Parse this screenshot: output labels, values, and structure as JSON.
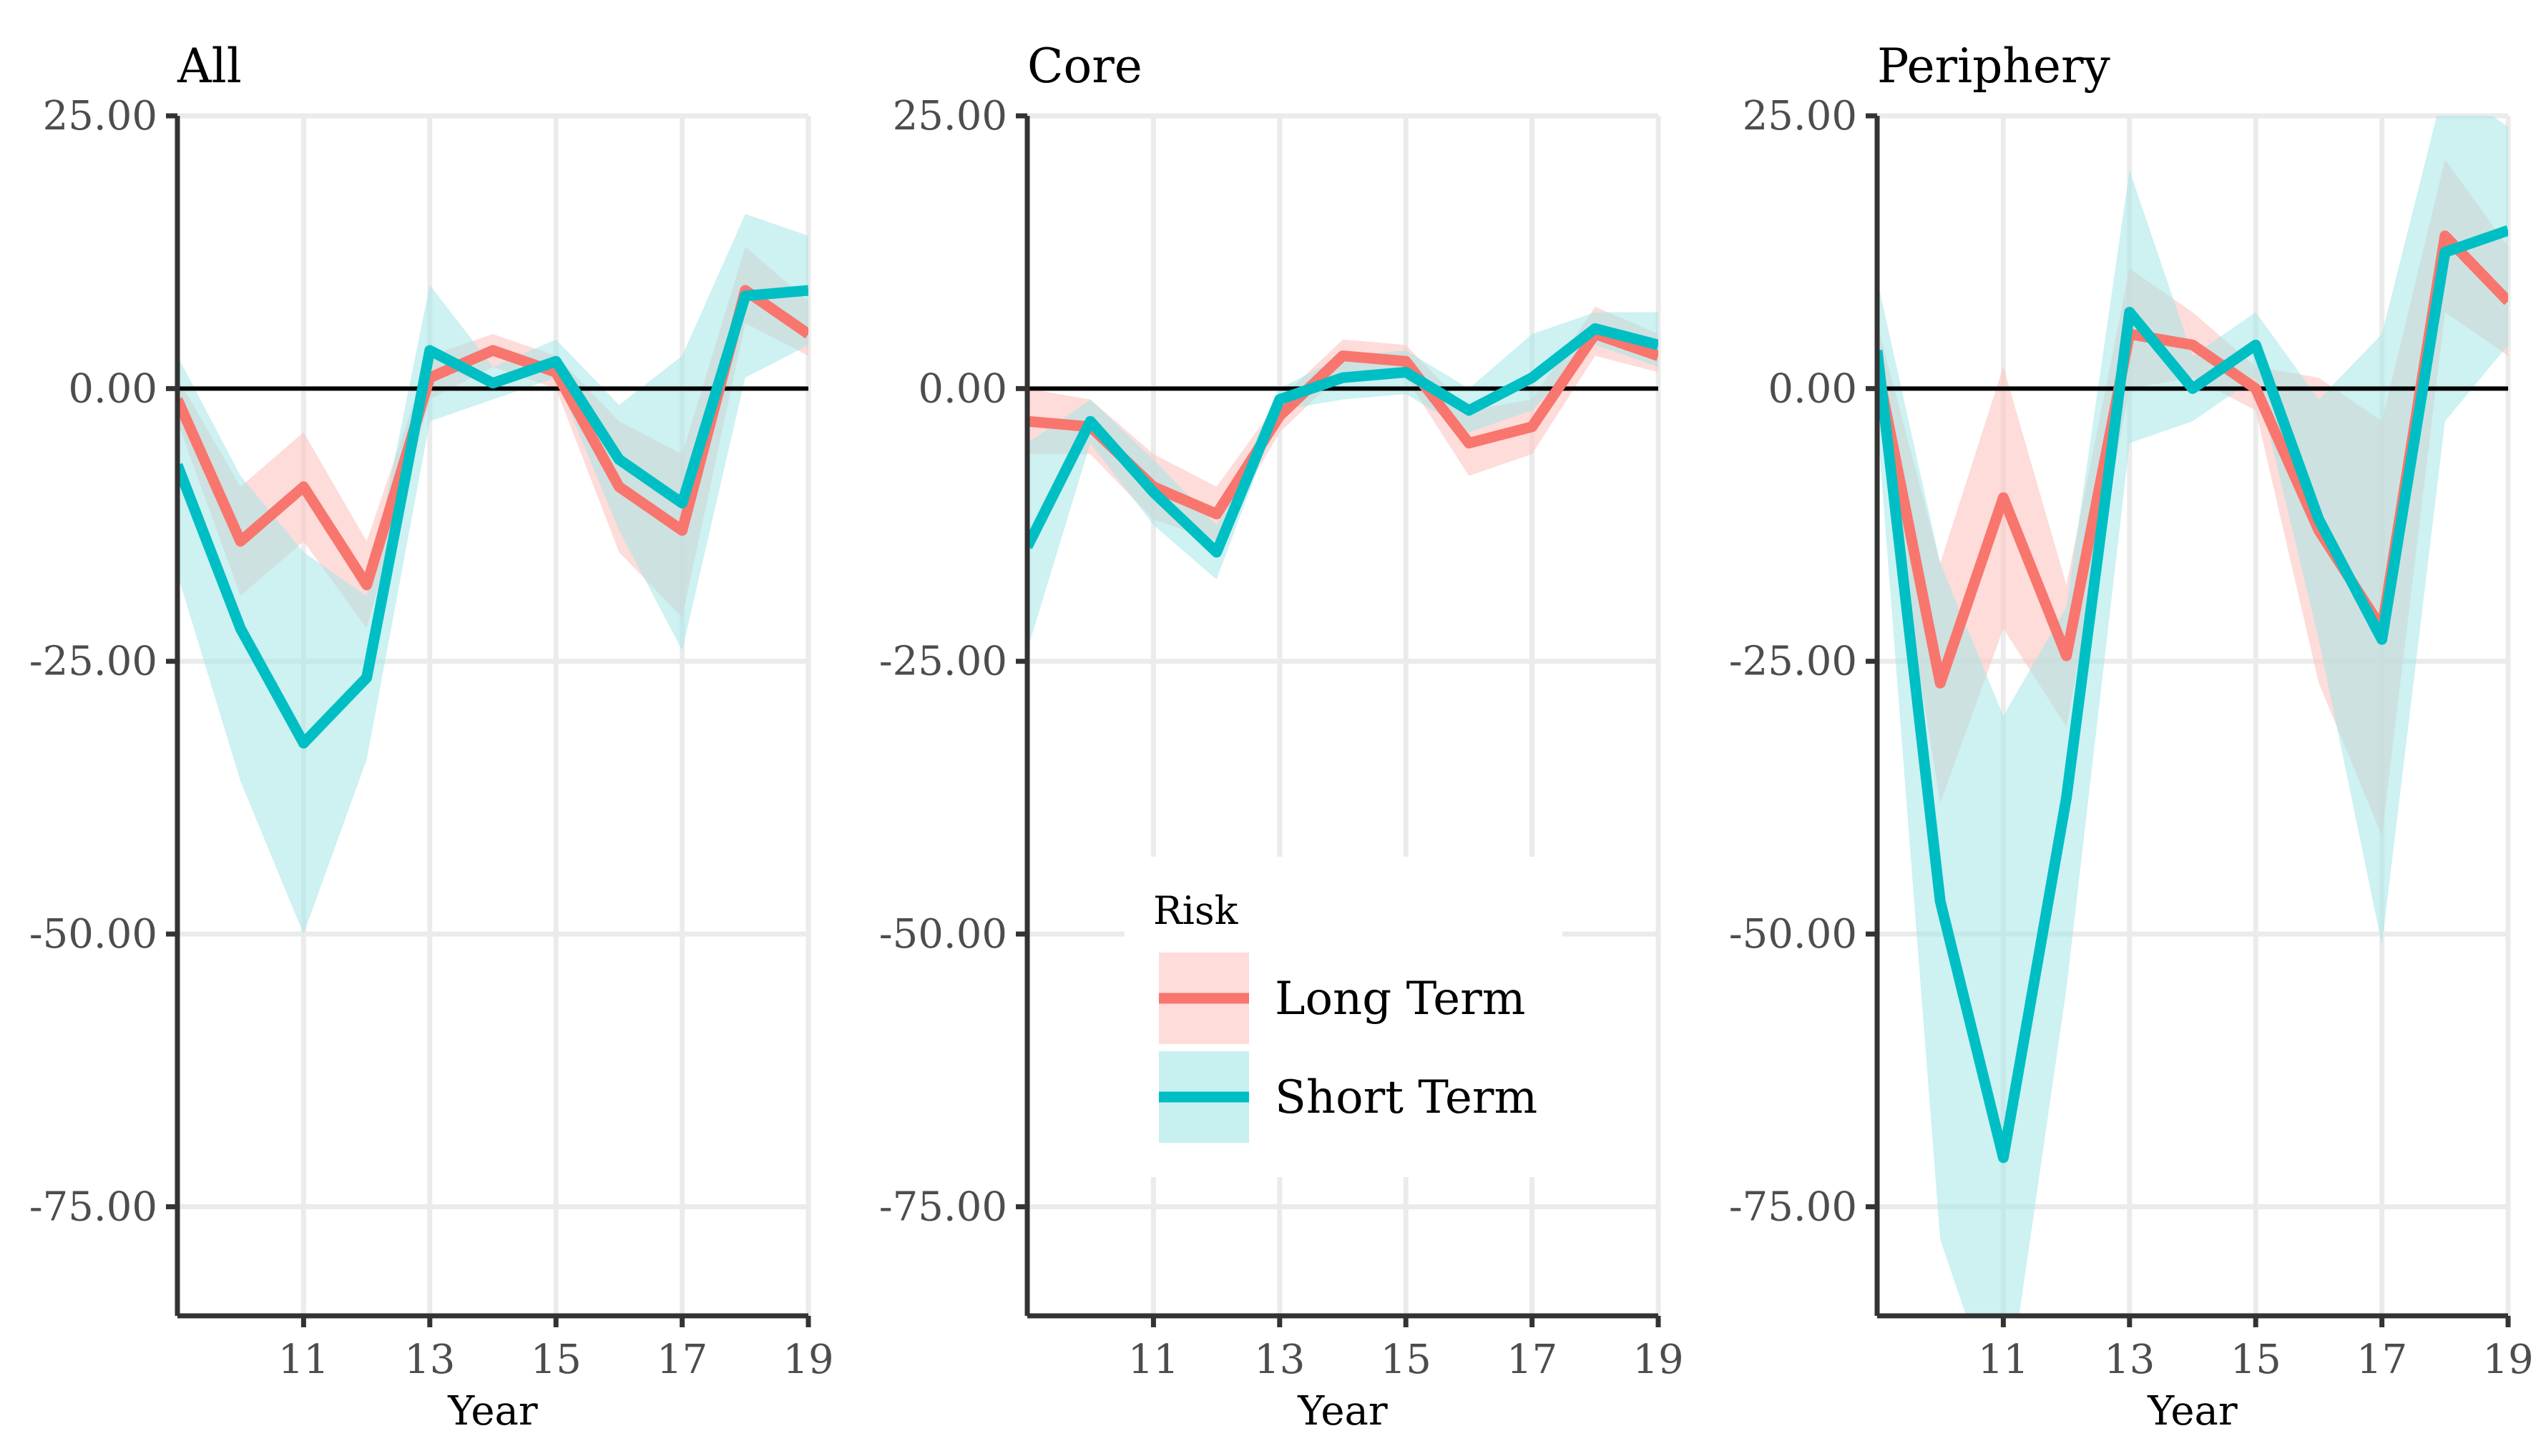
{
  "chart_data": [
    {
      "type": "line",
      "title": "All",
      "xlabel": "Year",
      "ylabel": "",
      "xlim": [
        9,
        19
      ],
      "ylim": [
        -85,
        25
      ],
      "xticks": [
        11,
        13,
        15,
        17,
        19
      ],
      "yticks": [
        25,
        0,
        -25,
        -50,
        -75
      ],
      "ytick_labels": [
        "25.00",
        "0.00",
        "-25.00",
        "-50.00",
        "-75.00"
      ],
      "reference_line": 0,
      "x": [
        9,
        10,
        11,
        12,
        13,
        14,
        15,
        16,
        17,
        18,
        19
      ],
      "series": [
        {
          "name": "Long Term",
          "values": [
            -1,
            -14,
            -9,
            -18,
            1,
            3.5,
            1.5,
            -9,
            -13,
            9,
            5
          ],
          "lower": [
            -3,
            -19,
            -14,
            -22,
            -1,
            2,
            0,
            -15,
            -21,
            6,
            3
          ],
          "upper": [
            1,
            -9,
            -4,
            -14,
            3,
            5,
            3,
            -3,
            -6,
            13,
            8
          ]
        },
        {
          "name": "Short Term",
          "values": [
            -7,
            -22,
            -32.5,
            -26.5,
            3.5,
            0.5,
            2.5,
            -6.5,
            -10.5,
            8.5,
            9
          ],
          "lower": [
            -17,
            -36,
            -50,
            -34,
            -3,
            -1,
            1,
            -13,
            -24,
            1,
            4
          ],
          "upper": [
            3,
            -8,
            -15,
            -19,
            9.5,
            2,
            4.5,
            -1.5,
            3,
            16,
            14
          ]
        }
      ]
    },
    {
      "type": "line",
      "title": "Core",
      "xlabel": "Year",
      "ylabel": "",
      "xlim": [
        9,
        19
      ],
      "ylim": [
        -85,
        25
      ],
      "xticks": [
        11,
        13,
        15,
        17,
        19
      ],
      "yticks": [
        25,
        0,
        -25,
        -50,
        -75
      ],
      "ytick_labels": [
        "25.00",
        "0.00",
        "-25.00",
        "-50.00",
        "-75.00"
      ],
      "reference_line": 0,
      "x": [
        9,
        10,
        11,
        12,
        13,
        14,
        15,
        16,
        17,
        18,
        19
      ],
      "series": [
        {
          "name": "Long Term",
          "values": [
            -3,
            -3.5,
            -9,
            -11.5,
            -2.5,
            3,
            2.5,
            -5,
            -3.5,
            5,
            3
          ],
          "lower": [
            -6,
            -6,
            -12,
            -14,
            -4,
            1.5,
            1,
            -8,
            -6,
            3,
            1.5
          ],
          "upper": [
            0,
            -1,
            -6,
            -9,
            -1,
            4.5,
            4,
            -2,
            -1,
            7.5,
            5
          ]
        },
        {
          "name": "Short Term",
          "values": [
            -14.5,
            -3,
            -9.5,
            -15,
            -1,
            1,
            1.5,
            -2,
            1,
            5.5,
            4
          ],
          "lower": [
            -24,
            -5,
            -12.5,
            -17.5,
            -2,
            -1,
            -0.5,
            -4,
            -2,
            4,
            2
          ],
          "upper": [
            -5,
            -1,
            -6.5,
            -12.5,
            0,
            3,
            3.5,
            0,
            5,
            7,
            7
          ]
        }
      ]
    },
    {
      "type": "line",
      "title": "Periphery",
      "xlabel": "Year",
      "ylabel": "",
      "xlim": [
        9,
        19
      ],
      "ylim": [
        -85,
        25
      ],
      "xticks": [
        11,
        13,
        15,
        17,
        19
      ],
      "yticks": [
        25,
        0,
        -25,
        -50,
        -75
      ],
      "ytick_labels": [
        "25.00",
        "0.00",
        "-25.00",
        "-50.00",
        "-75.00"
      ],
      "reference_line": 0,
      "x": [
        9,
        10,
        11,
        12,
        13,
        14,
        15,
        16,
        17,
        18,
        19
      ],
      "series": [
        {
          "name": "Long Term",
          "values": [
            2,
            -27,
            -10,
            -24.5,
            5,
            4,
            0,
            -13,
            -22,
            14,
            8
          ],
          "lower": [
            -2,
            -38,
            -22,
            -31,
            0,
            1,
            -2,
            -27,
            -41,
            7,
            3
          ],
          "upper": [
            6,
            -16,
            2,
            -18,
            11,
            7,
            2,
            1,
            -3,
            21,
            13
          ]
        },
        {
          "name": "Short Term",
          "values": [
            3.5,
            -47,
            -70.5,
            -37.5,
            7,
            0,
            4,
            -12,
            -23,
            12.5,
            14.5
          ],
          "lower": [
            -3,
            -78,
            -95,
            -55,
            -5,
            -3,
            1,
            -23,
            -51,
            -3,
            4
          ],
          "upper": [
            10,
            -16,
            -30,
            -20,
            20,
            3,
            7,
            -1,
            5,
            28,
            24
          ]
        }
      ]
    }
  ],
  "legend": {
    "title": "Risk",
    "items": [
      {
        "label": "Long Term",
        "color": "#F8766D"
      },
      {
        "label": "Short Term",
        "color": "#00BFC4"
      }
    ]
  },
  "colors": {
    "long_term": "#F8766D",
    "short_term": "#00BFC4",
    "long_band": "#FBC5C2",
    "short_band": "#A5E6E8",
    "grid": "#EBEBEB",
    "axis": "#333333",
    "zero_line": "#000000"
  }
}
